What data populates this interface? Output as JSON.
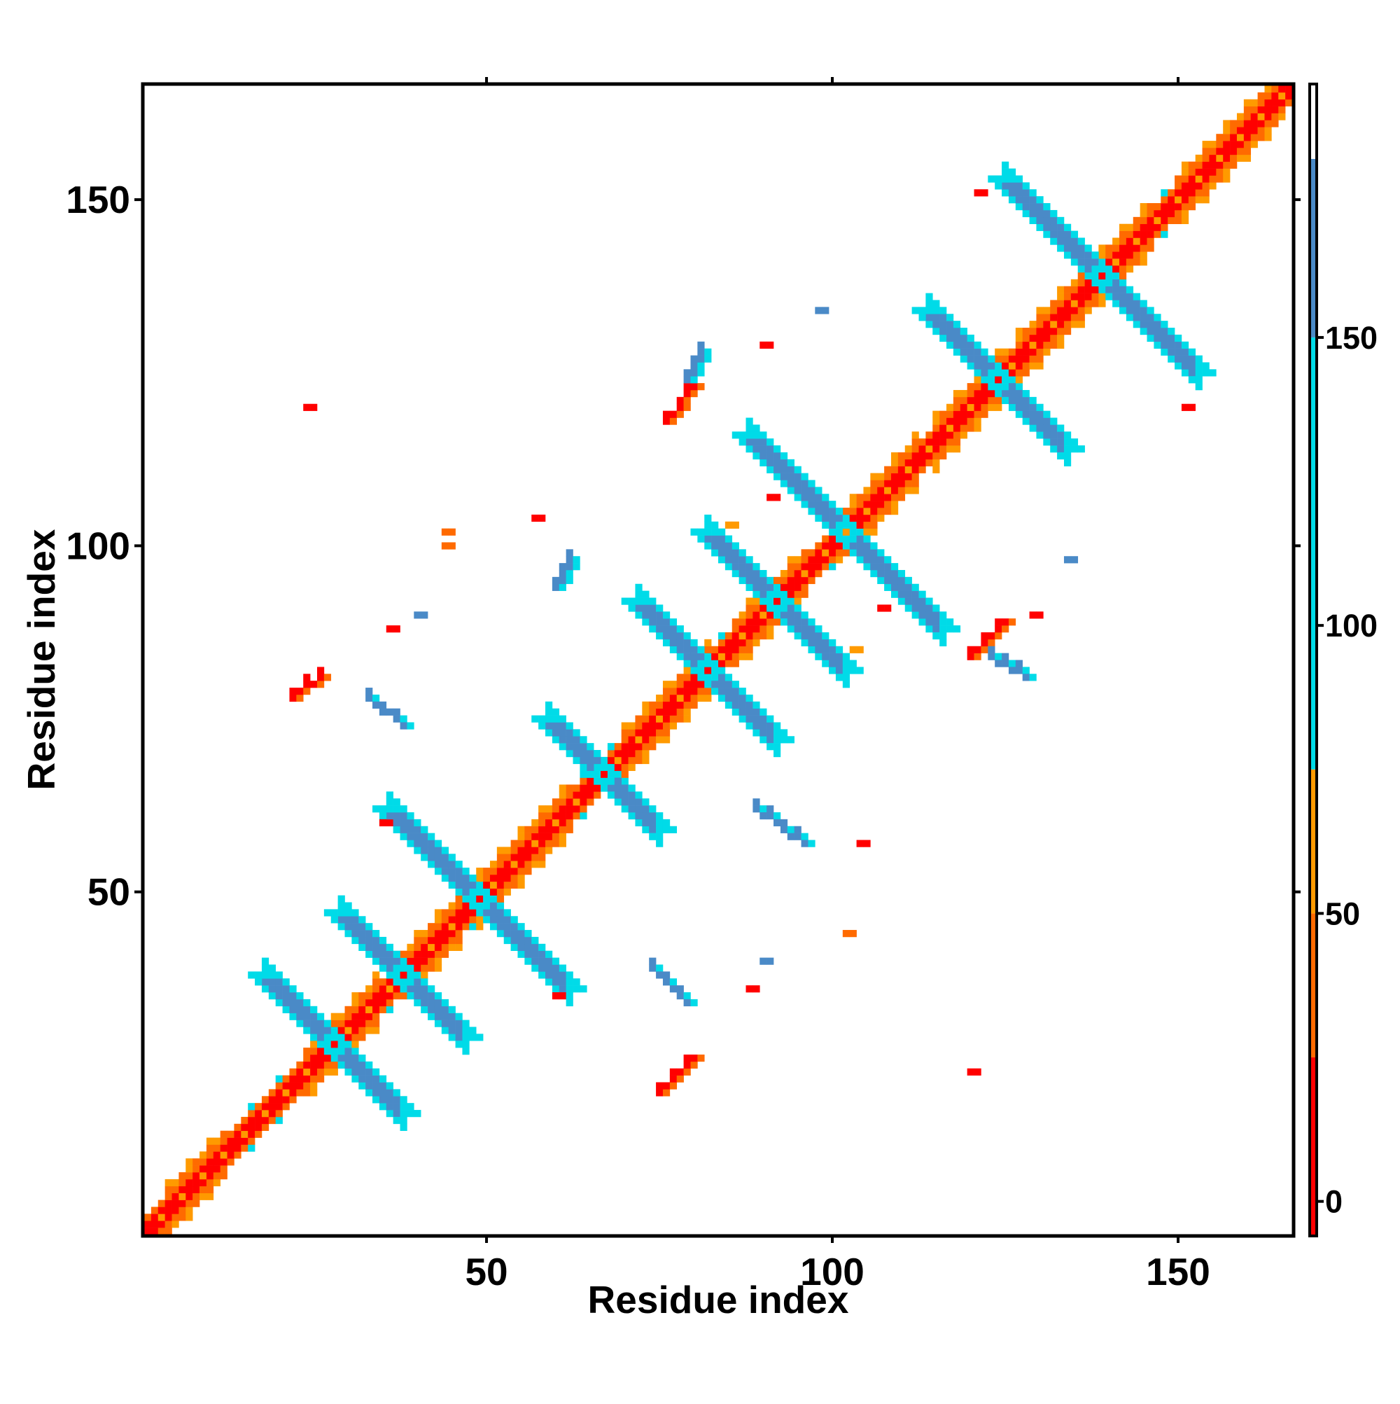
{
  "chart_data": {
    "type": "heatmap",
    "title": "",
    "xlabel": "Residue index",
    "ylabel": "Residue index",
    "xlim": [
      1,
      166
    ],
    "ylim": [
      1,
      166
    ],
    "x_ticks": [
      50,
      100,
      150
    ],
    "y_ticks": [
      50,
      100,
      150
    ],
    "grid": false,
    "colorbar": {
      "ticks": [
        0,
        50,
        100,
        150
      ],
      "range": [
        -6,
        194
      ],
      "segments": [
        {
          "from": -6,
          "to": 25,
          "color": "#ff0000"
        },
        {
          "from": 25,
          "to": 50,
          "color": "#ff6a00"
        },
        {
          "from": 50,
          "to": 75,
          "color": "#ff9a00"
        },
        {
          "from": 75,
          "to": 150,
          "color": "#00dbe8"
        },
        {
          "from": 150,
          "to": 181,
          "color": "#4a8ac7"
        },
        {
          "from": 181,
          "to": 194,
          "color": "#ffffff"
        }
      ]
    },
    "value_colors": {
      "red": "#ff0000",
      "orange": "#ff6a00",
      "amber": "#ff9a00",
      "cyan": "#00dbe8",
      "blue": "#4a8ac7"
    },
    "diagonal_band": {
      "pattern_inner": "red",
      "pattern_outer": "orange",
      "helix_segments": [
        [
          4,
          12
        ],
        [
          24,
          34
        ],
        [
          38,
          46
        ],
        [
          49,
          62
        ],
        [
          70,
          82
        ],
        [
          86,
          96
        ],
        [
          101,
          112
        ],
        [
          115,
          125
        ],
        [
          127,
          146
        ],
        [
          150,
          165
        ]
      ]
    },
    "features": [
      {
        "kind": "antidiagonal",
        "center": [
          28,
          28
        ],
        "half_len": 10,
        "width": 2,
        "value": 160
      },
      {
        "kind": "antidiagonal",
        "center": [
          38,
          38
        ],
        "half_len": 9,
        "width": 2,
        "value": 160
      },
      {
        "kind": "antidiagonal",
        "center": [
          49,
          49
        ],
        "half_len": 13,
        "width": 2,
        "value": 160
      },
      {
        "kind": "antidiagonal",
        "center": [
          67,
          67
        ],
        "half_len": 8,
        "width": 2,
        "value": 160
      },
      {
        "kind": "antidiagonal",
        "center": [
          82,
          82
        ],
        "half_len": 10,
        "width": 2,
        "value": 160
      },
      {
        "kind": "antidiagonal",
        "center": [
          92,
          92
        ],
        "half_len": 10,
        "width": 2,
        "value": 160
      },
      {
        "kind": "antidiagonal",
        "center": [
          102,
          102
        ],
        "half_len": 14,
        "width": 2,
        "value": 160
      },
      {
        "kind": "antidiagonal",
        "center": [
          124,
          124
        ],
        "half_len": 10,
        "width": 2,
        "value": 160
      },
      {
        "kind": "antidiagonal",
        "center": [
          139,
          139
        ],
        "half_len": 14,
        "width": 2,
        "value": 160
      },
      {
        "kind": "cluster",
        "from": [
          75,
          21
        ],
        "to": [
          80,
          26
        ],
        "value": 5
      },
      {
        "kind": "cluster",
        "from": [
          120,
          84
        ],
        "to": [
          125,
          89
        ],
        "value": 5
      },
      {
        "kind": "cluster",
        "from": [
          22,
          78
        ],
        "to": [
          26,
          81
        ],
        "value": 5
      },
      {
        "kind": "cluster",
        "from": [
          76,
          118
        ],
        "to": [
          80,
          123
        ],
        "value": 5
      },
      {
        "kind": "cluster",
        "from": [
          33,
          78
        ],
        "to": [
          38,
          74
        ],
        "value": 150
      },
      {
        "kind": "cluster",
        "from": [
          74,
          39
        ],
        "to": [
          79,
          34
        ],
        "value": 150
      },
      {
        "kind": "cluster",
        "from": [
          89,
          62
        ],
        "to": [
          96,
          57
        ],
        "value": 150
      },
      {
        "kind": "cluster",
        "from": [
          60,
          94
        ],
        "to": [
          62,
          98
        ],
        "value": 150
      },
      {
        "kind": "cluster",
        "from": [
          123,
          84
        ],
        "to": [
          128,
          81
        ],
        "value": 150
      },
      {
        "kind": "cluster",
        "from": [
          79,
          124
        ],
        "to": [
          81,
          128
        ],
        "value": 150
      },
      {
        "kind": "spot",
        "at": [
          57,
          104
        ],
        "value": 20
      },
      {
        "kind": "spot",
        "at": [
          104,
          57
        ],
        "value": 20
      },
      {
        "kind": "spot",
        "at": [
          44,
          100
        ],
        "value": 40
      },
      {
        "kind": "spot",
        "at": [
          24,
          120
        ],
        "value": 5
      },
      {
        "kind": "spot",
        "at": [
          151,
          120
        ],
        "value": 5
      },
      {
        "kind": "spot",
        "at": [
          121,
          151
        ],
        "value": 5
      },
      {
        "kind": "spot",
        "at": [
          120,
          24
        ],
        "value": 5
      },
      {
        "kind": "spot",
        "at": [
          107,
          91
        ],
        "value": 20
      },
      {
        "kind": "spot",
        "at": [
          91,
          107
        ],
        "value": 20
      },
      {
        "kind": "spot",
        "at": [
          129,
          90
        ],
        "value": 20
      },
      {
        "kind": "spot",
        "at": [
          90,
          129
        ],
        "value": 20
      },
      {
        "kind": "spot",
        "at": [
          40,
          90
        ],
        "value": 150
      },
      {
        "kind": "spot",
        "at": [
          90,
          40
        ],
        "value": 150
      },
      {
        "kind": "spot",
        "at": [
          134,
          98
        ],
        "value": 150
      },
      {
        "kind": "spot",
        "at": [
          98,
          134
        ],
        "value": 150
      },
      {
        "kind": "spot",
        "at": [
          85,
          103
        ],
        "value": 50
      },
      {
        "kind": "spot",
        "at": [
          103,
          85
        ],
        "value": 50
      },
      {
        "kind": "spot",
        "at": [
          36,
          88
        ],
        "value": 5
      },
      {
        "kind": "spot",
        "at": [
          88,
          36
        ],
        "value": 5
      },
      {
        "kind": "spot",
        "at": [
          35,
          60
        ],
        "value": 20
      },
      {
        "kind": "spot",
        "at": [
          60,
          35
        ],
        "value": 20
      },
      {
        "kind": "spot",
        "at": [
          102,
          44
        ],
        "value": 40
      },
      {
        "kind": "spot",
        "at": [
          44,
          102
        ],
        "value": 40
      }
    ]
  }
}
